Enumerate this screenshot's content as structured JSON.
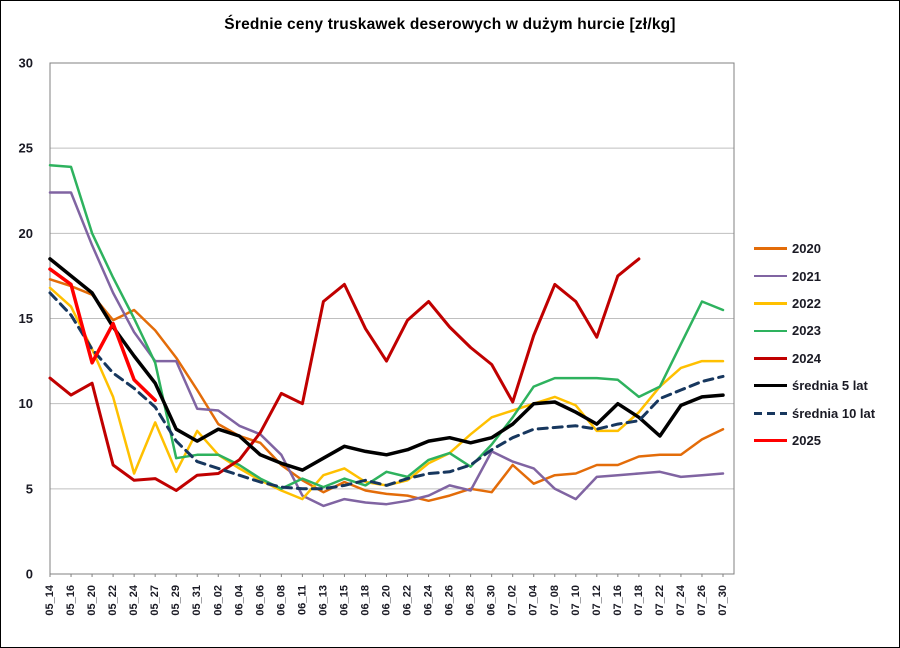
{
  "window": {
    "background": "#ffffff",
    "frame_color": "#000000"
  },
  "chart_data": {
    "type": "line",
    "title": "Średnie ceny truskawek deserowych w dużym hurcie [zł/kg]",
    "xlabel": "",
    "ylabel": "",
    "ylim": [
      0,
      30
    ],
    "y_ticks": [
      0,
      5,
      10,
      15,
      20,
      25,
      30
    ],
    "grid": "horizontal",
    "grid_color": "#bfbfbf",
    "plot_border_color": "#808080",
    "axis_text_color": "#1a1a24",
    "legend_position": "right",
    "categories": [
      "05_14",
      "05_16",
      "05_20",
      "05_22",
      "05_24",
      "05_27",
      "05_29",
      "05_31",
      "06_02",
      "06_04",
      "06_06",
      "06_08",
      "06_11",
      "06_13",
      "06_15",
      "06_18",
      "06_20",
      "06_22",
      "06_24",
      "06_26",
      "06_28",
      "06_30",
      "07_02",
      "07_04",
      "07_08",
      "07_10",
      "07_12",
      "07_16",
      "07_18",
      "07_22",
      "07_24",
      "07_26",
      "07_30"
    ],
    "series": [
      {
        "name": "2020",
        "color": "#E36C09",
        "width": 2.5,
        "dash": null,
        "values": [
          17.3,
          16.9,
          16.4,
          14.9,
          15.5,
          14.3,
          12.7,
          10.8,
          8.8,
          8.1,
          7.7,
          6.4,
          5.5,
          4.8,
          5.4,
          4.9,
          4.7,
          4.6,
          4.3,
          4.6,
          5.0,
          4.8,
          6.4,
          5.3,
          5.8,
          5.9,
          6.4,
          6.4,
          6.9,
          7.0,
          7.0,
          7.9,
          8.5
        ]
      },
      {
        "name": "2021",
        "color": "#8064A2",
        "width": 2.5,
        "dash": null,
        "values": [
          22.4,
          22.4,
          19.3,
          16.5,
          14.2,
          12.5,
          12.5,
          9.7,
          9.6,
          8.7,
          8.2,
          7.0,
          4.6,
          4.0,
          4.4,
          4.2,
          4.1,
          4.3,
          4.6,
          5.2,
          4.9,
          7.2,
          6.6,
          6.2,
          5.0,
          4.4,
          5.7,
          5.8,
          5.9,
          6.0,
          5.7,
          5.8,
          5.9
        ]
      },
      {
        "name": "2022",
        "color": "#FFC000",
        "width": 2.5,
        "dash": null,
        "values": [
          16.8,
          15.7,
          13.2,
          10.4,
          5.9,
          8.9,
          6.0,
          8.4,
          7.0,
          6.2,
          5.5,
          4.9,
          4.4,
          5.8,
          6.2,
          5.4,
          5.2,
          5.5,
          6.5,
          7.1,
          8.2,
          9.2,
          9.6,
          10.0,
          10.4,
          9.9,
          8.4,
          8.4,
          9.5,
          11.0,
          12.1,
          12.5,
          12.5
        ]
      },
      {
        "name": "2023",
        "color": "#2EB25E",
        "width": 2.5,
        "dash": null,
        "values": [
          24.0,
          23.9,
          20.0,
          17.4,
          15.0,
          12.4,
          6.8,
          7.0,
          7.0,
          6.4,
          5.6,
          5.0,
          5.6,
          5.1,
          5.6,
          5.2,
          6.0,
          5.7,
          6.7,
          7.1,
          6.3,
          7.6,
          9.2,
          11.0,
          11.5,
          11.5,
          11.5,
          11.4,
          10.4,
          11.0,
          13.5,
          16.0,
          15.5
        ]
      },
      {
        "name": "2024",
        "color": "#C00000",
        "width": 3,
        "dash": null,
        "values": [
          11.5,
          10.5,
          11.2,
          6.4,
          5.5,
          5.6,
          4.9,
          5.8,
          5.9,
          6.7,
          8.3,
          10.6,
          10.0,
          16.0,
          17.0,
          14.4,
          12.5,
          14.9,
          16.0,
          14.5,
          13.3,
          12.3,
          10.1,
          14.0,
          17.0,
          16.0,
          13.9,
          17.5,
          18.5,
          null,
          null,
          null,
          null
        ]
      },
      {
        "name": "średnia 5 lat",
        "color": "#000000",
        "width": 3.5,
        "dash": null,
        "values": [
          18.5,
          17.5,
          16.5,
          14.5,
          12.8,
          11.2,
          8.5,
          7.8,
          8.5,
          8.1,
          7.0,
          6.5,
          6.1,
          6.8,
          7.5,
          7.2,
          7.0,
          7.3,
          7.8,
          8.0,
          7.7,
          8.0,
          8.8,
          10.0,
          10.1,
          9.5,
          8.8,
          10.0,
          9.2,
          8.1,
          9.9,
          10.4,
          10.5
        ]
      },
      {
        "name": "średnia 10 lat",
        "color": "#17375E",
        "width": 3,
        "dash": "9,6",
        "values": [
          16.5,
          15.2,
          13.2,
          11.8,
          10.9,
          9.8,
          7.8,
          6.6,
          6.2,
          5.8,
          5.4,
          5.1,
          5.0,
          5.0,
          5.2,
          5.5,
          5.2,
          5.6,
          5.9,
          6.0,
          6.4,
          7.3,
          8.0,
          8.5,
          8.6,
          8.7,
          8.5,
          8.8,
          9.0,
          10.3,
          10.8,
          11.3,
          11.6
        ]
      },
      {
        "name": "2025",
        "color": "#FF0000",
        "width": 3.5,
        "dash": null,
        "values": [
          17.9,
          17.0,
          12.4,
          14.7,
          11.4,
          10.2,
          null,
          null,
          null,
          null,
          null,
          null,
          null,
          null,
          null,
          null,
          null,
          null,
          null,
          null,
          null,
          null,
          null,
          null,
          null,
          null,
          null,
          null,
          null,
          null,
          null,
          null,
          null
        ]
      }
    ]
  }
}
